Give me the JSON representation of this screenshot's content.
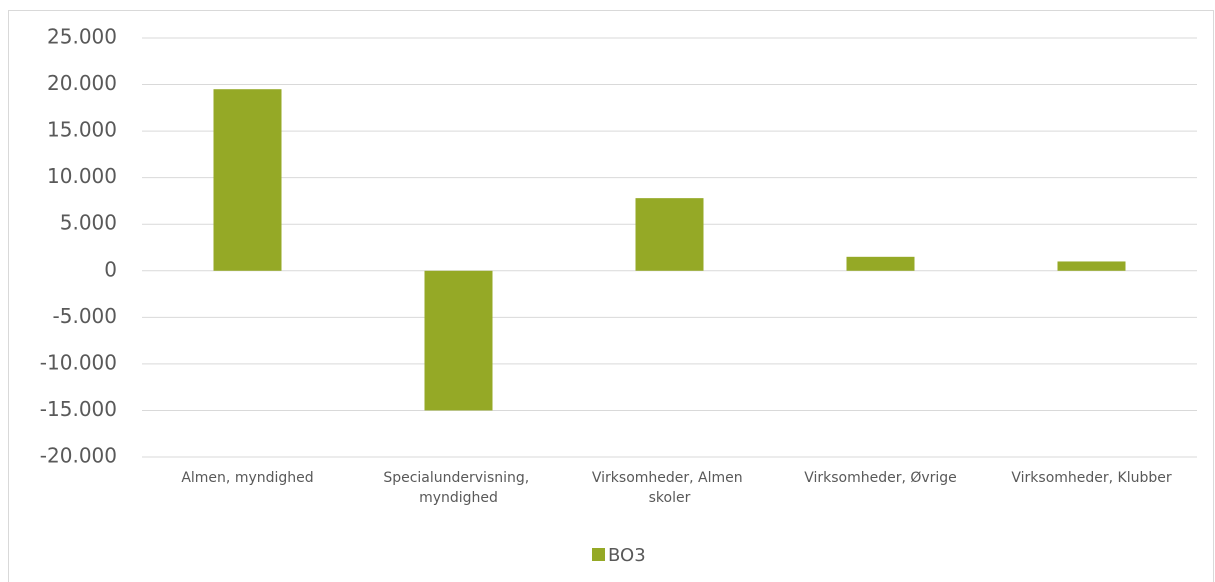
{
  "chart_data": {
    "type": "bar",
    "categories": [
      "Almen, myndighed",
      "Specialundervisning, myndighed",
      "Virksomheder, Almen skoler",
      "Virksomheder, Øvrige",
      "Virksomheder, Klubber"
    ],
    "series": [
      {
        "name": "BO3",
        "color": "#95a926",
        "values": [
          19500,
          -15000,
          7800,
          1500,
          1000
        ]
      }
    ],
    "ylim": [
      -20000,
      25000
    ],
    "yticks": [
      {
        "value": -20000,
        "label": "-20.000"
      },
      {
        "value": -15000,
        "label": "-15.000"
      },
      {
        "value": -10000,
        "label": "-10.000"
      },
      {
        "value": -5000,
        "label": "-5.000"
      },
      0,
      {
        "value": 5000,
        "label": "5.000"
      },
      {
        "value": 10000,
        "label": "10.000"
      },
      {
        "value": 15000,
        "label": "15.000"
      },
      {
        "value": 20000,
        "label": "20.000"
      },
      {
        "value": 25000,
        "label": "25.000"
      }
    ],
    "grid": true,
    "legend": "bottom"
  }
}
